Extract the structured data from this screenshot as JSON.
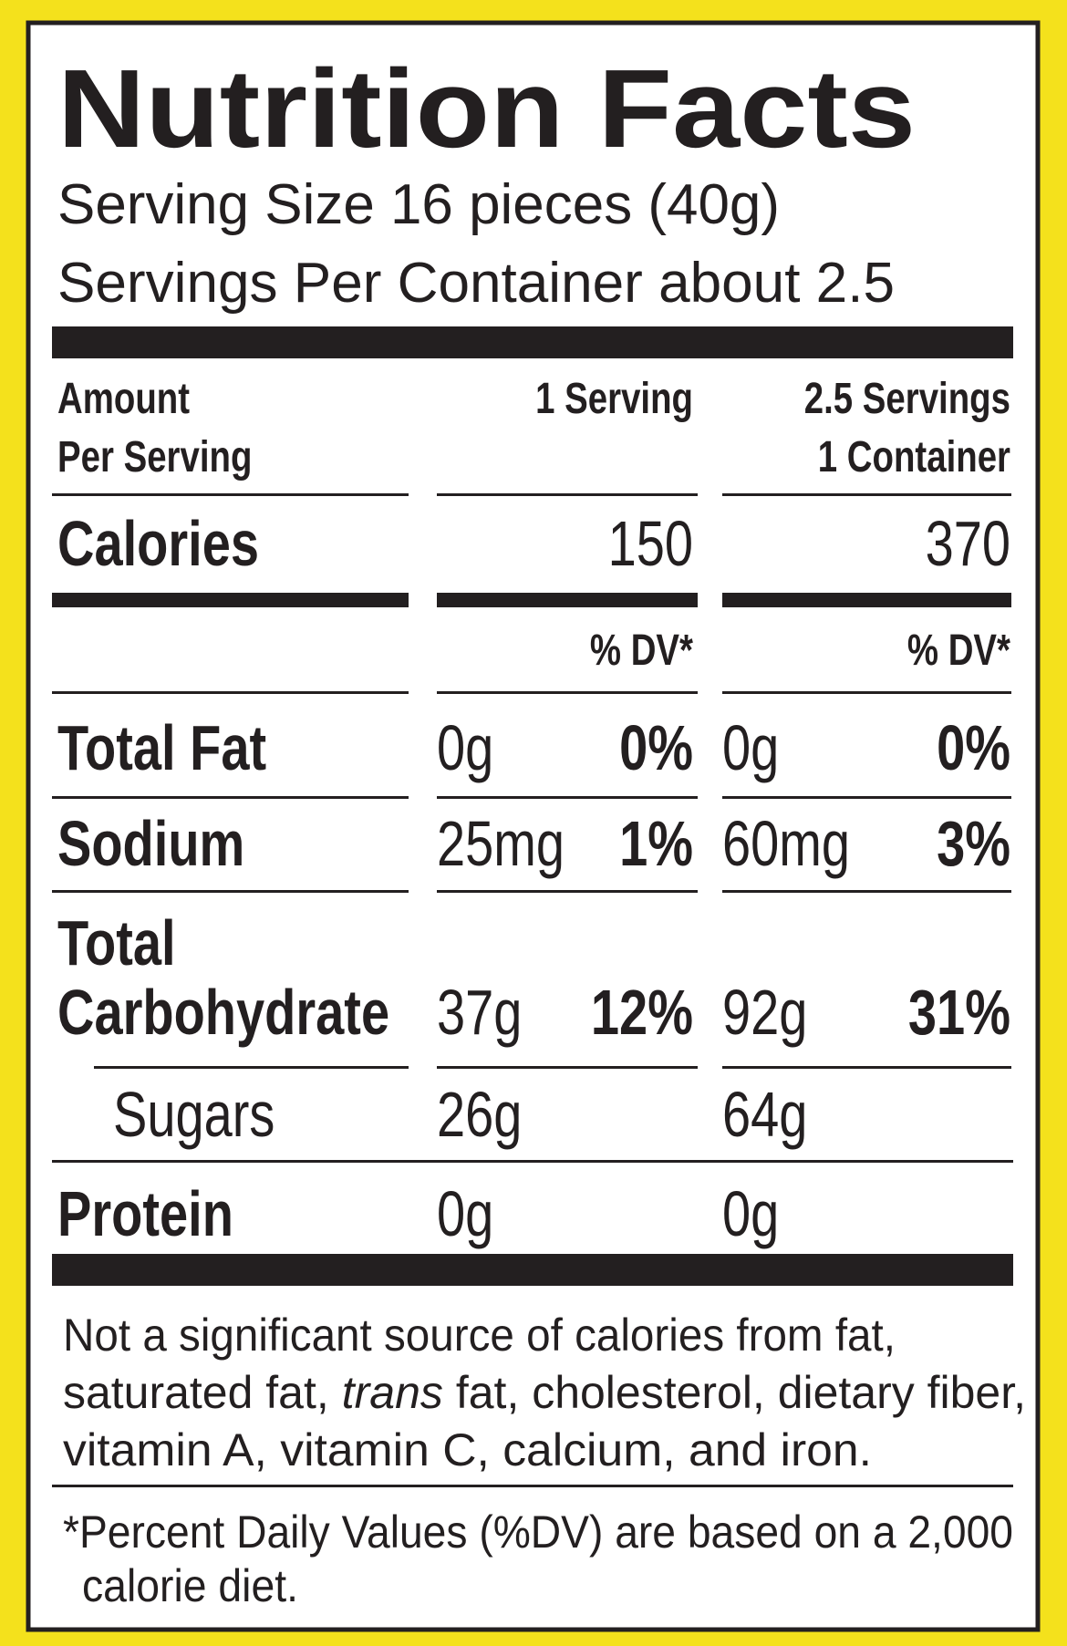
{
  "header": {
    "title": "Nutrition Facts",
    "serving_size": "Serving Size 16 pieces (40g)",
    "servings_per_container": "Servings Per Container about 2.5"
  },
  "columns": {
    "amount_label": [
      "Amount",
      "Per Serving"
    ],
    "serving": [
      "1 Serving"
    ],
    "container": [
      "2.5 Servings",
      "1 Container"
    ],
    "dv_label": "% DV*"
  },
  "calories": {
    "label": "Calories",
    "serving": "150",
    "container": "370"
  },
  "rows": [
    {
      "label": [
        "Total Fat"
      ],
      "serving": {
        "amount": "0g",
        "dv": "0%"
      },
      "container": {
        "amount": "0g",
        "dv": "0%"
      }
    },
    {
      "label": [
        "Sodium"
      ],
      "serving": {
        "amount": "25mg",
        "dv": "1%"
      },
      "container": {
        "amount": "60mg",
        "dv": "3%"
      }
    },
    {
      "label": [
        "Total",
        "Carbohydrate"
      ],
      "serving": {
        "amount": "37g",
        "dv": "12%"
      },
      "container": {
        "amount": "92g",
        "dv": "31%"
      }
    },
    {
      "label": [
        "Sugars"
      ],
      "serving": {
        "amount": "26g"
      },
      "container": {
        "amount": "64g"
      }
    },
    {
      "label": [
        "Protein"
      ],
      "serving": {
        "amount": "0g"
      },
      "container": {
        "amount": "0g"
      }
    }
  ],
  "footnote": {
    "not_significant": [
      [
        {
          "text": "Not a significant source of calories from fat,"
        }
      ],
      [
        {
          "text": "saturated fat,"
        },
        {
          "text": "trans",
          "italic": true
        },
        {
          "text": "fat, cholesterol, dietary fiber,"
        }
      ],
      [
        {
          "text": "vitamin A, vitamin C, calcium, and iron."
        }
      ]
    ],
    "daily_values": [
      "*Percent Daily Values (%DV) are based on a 2,000",
      "calorie diet."
    ]
  }
}
